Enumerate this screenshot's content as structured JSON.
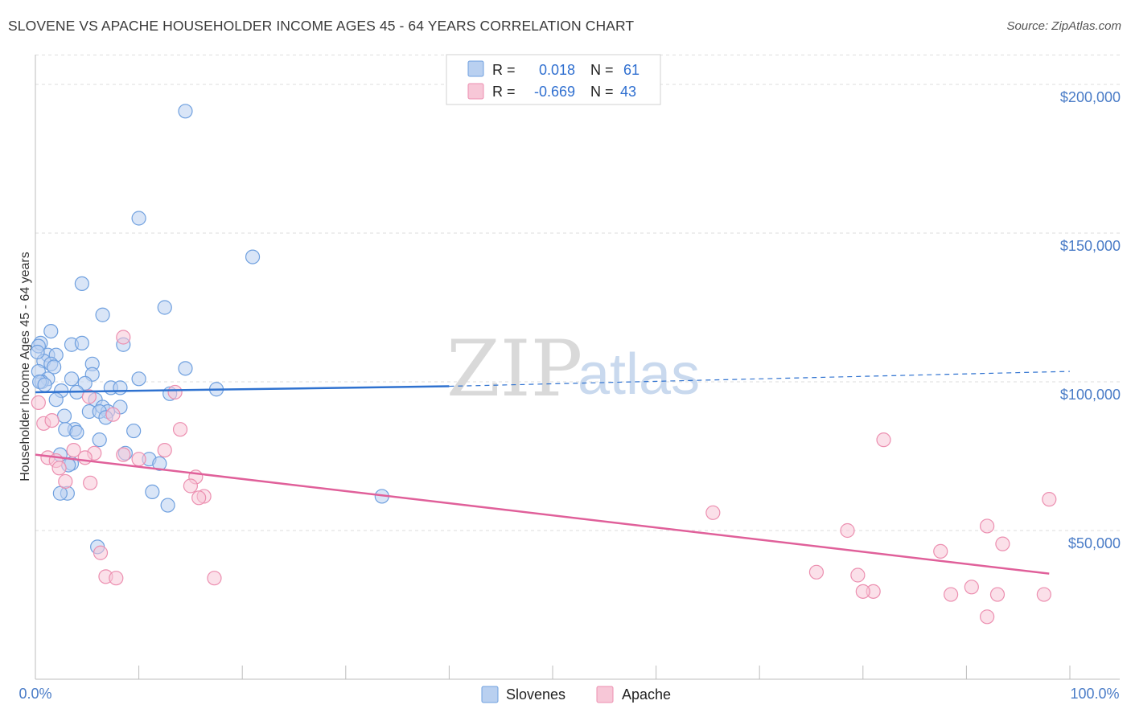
{
  "title": "SLOVENE VS APACHE HOUSEHOLDER INCOME AGES 45 - 64 YEARS CORRELATION CHART",
  "source": "Source: ZipAtlas.com",
  "watermark": {
    "zip": "ZIP",
    "atlas": "atlas"
  },
  "legend": {
    "rows": [
      {
        "r_label": "R =",
        "r_value": "0.018",
        "n_label": "N =",
        "n_value": "61"
      },
      {
        "r_label": "R =",
        "r_value": "-0.669",
        "n_label": "N =",
        "n_value": "43"
      }
    ]
  },
  "colors": {
    "slovenes": "#6fa0df",
    "slovenes_fill": "#b9d0f0",
    "apache": "#ec8fb0",
    "apache_fill": "#f7c7d7",
    "slovenes_line": "#2f72d0",
    "apache_line": "#e0609a",
    "axis_text": "#4a7cc7"
  },
  "chart_data": {
    "type": "scatter",
    "title": "SLOVENE VS APACHE HOUSEHOLDER INCOME AGES 45 - 64 YEARS CORRELATION CHART",
    "xlabel": "",
    "ylabel": "Householder Income Ages 45 - 64 years",
    "xlim": [
      0,
      100
    ],
    "ylim": [
      0,
      210000
    ],
    "x_tick_labels": [
      "0.0%",
      "100.0%"
    ],
    "y_ticks": [
      50000,
      100000,
      150000,
      200000
    ],
    "y_tick_labels": [
      "$50,000",
      "$100,000",
      "$150,000",
      "$200,000"
    ],
    "legend_position": "top-center",
    "series": [
      {
        "name": "Slovenes",
        "r": 0.018,
        "n": 61,
        "trend": {
          "x0": 0,
          "y0": 96500,
          "x1": 40,
          "y1": 98500,
          "dash_x1": 100,
          "dash_y1": 103500
        },
        "points": [
          [
            14.5,
            191000
          ],
          [
            10,
            155000
          ],
          [
            21,
            142000
          ],
          [
            4.5,
            133000
          ],
          [
            12.5,
            125000
          ],
          [
            6.5,
            122500
          ],
          [
            1.5,
            117000
          ],
          [
            0.5,
            113000
          ],
          [
            3.5,
            112500
          ],
          [
            4.5,
            113000
          ],
          [
            8.5,
            112500
          ],
          [
            0.3,
            112000
          ],
          [
            1.2,
            109000
          ],
          [
            2,
            109000
          ],
          [
            0.8,
            107000
          ],
          [
            1.5,
            106000
          ],
          [
            5.5,
            106000
          ],
          [
            1.8,
            105000
          ],
          [
            14.5,
            104500
          ],
          [
            0.3,
            103500
          ],
          [
            5.5,
            102500
          ],
          [
            10,
            101000
          ],
          [
            3.5,
            101000
          ],
          [
            1.2,
            101000
          ],
          [
            0.6,
            100000
          ],
          [
            0.4,
            100000
          ],
          [
            4.8,
            99500
          ],
          [
            7.3,
            98000
          ],
          [
            8.2,
            98000
          ],
          [
            17.5,
            97500
          ],
          [
            2.5,
            97000
          ],
          [
            4,
            96500
          ],
          [
            13,
            96000
          ],
          [
            2,
            94000
          ],
          [
            5.8,
            94000
          ],
          [
            6.5,
            91500
          ],
          [
            8.2,
            91500
          ],
          [
            7,
            90000
          ],
          [
            5.2,
            90000
          ],
          [
            6.2,
            90000
          ],
          [
            2.8,
            88500
          ],
          [
            6.8,
            88000
          ],
          [
            3.8,
            84000
          ],
          [
            2.9,
            84000
          ],
          [
            9.5,
            83500
          ],
          [
            4,
            83000
          ],
          [
            6.2,
            80500
          ],
          [
            8.7,
            76000
          ],
          [
            2.4,
            75500
          ],
          [
            11,
            74000
          ],
          [
            3.5,
            72500
          ],
          [
            12,
            72500
          ],
          [
            3.2,
            72000
          ],
          [
            11.3,
            63000
          ],
          [
            3.1,
            62500
          ],
          [
            2.4,
            62500
          ],
          [
            33.5,
            61500
          ],
          [
            12.8,
            58500
          ],
          [
            6,
            44500
          ],
          [
            0.2,
            110000
          ],
          [
            0.9,
            99000
          ]
        ]
      },
      {
        "name": "Apache",
        "r": -0.669,
        "n": 43,
        "trend": {
          "x0": 0,
          "y0": 75500,
          "x1": 98,
          "y1": 35500
        },
        "points": [
          [
            0.3,
            93000
          ],
          [
            0.8,
            86000
          ],
          [
            8.5,
            115000
          ],
          [
            13.5,
            96500
          ],
          [
            5.2,
            95000
          ],
          [
            7.5,
            89000
          ],
          [
            1.6,
            87000
          ],
          [
            14,
            84000
          ],
          [
            82,
            80500
          ],
          [
            12.5,
            77000
          ],
          [
            3.7,
            77000
          ],
          [
            5.7,
            76000
          ],
          [
            8.5,
            75500
          ],
          [
            1.2,
            74500
          ],
          [
            4.8,
            74500
          ],
          [
            10,
            74000
          ],
          [
            2,
            73500
          ],
          [
            2.3,
            71000
          ],
          [
            15.5,
            68000
          ],
          [
            2.9,
            66500
          ],
          [
            5.3,
            66000
          ],
          [
            15,
            65000
          ],
          [
            16.3,
            61500
          ],
          [
            15.8,
            61000
          ],
          [
            98,
            60500
          ],
          [
            65.5,
            56000
          ],
          [
            78.5,
            50000
          ],
          [
            92,
            51500
          ],
          [
            93.5,
            45500
          ],
          [
            87.5,
            43000
          ],
          [
            6.3,
            42500
          ],
          [
            75.5,
            36000
          ],
          [
            79.5,
            35000
          ],
          [
            6.8,
            34500
          ],
          [
            7.8,
            34000
          ],
          [
            17.3,
            34000
          ],
          [
            81,
            29500
          ],
          [
            80,
            29500
          ],
          [
            90.5,
            31000
          ],
          [
            88.5,
            28500
          ],
          [
            93,
            28500
          ],
          [
            97.5,
            28500
          ],
          [
            92,
            21000
          ]
        ]
      }
    ]
  }
}
